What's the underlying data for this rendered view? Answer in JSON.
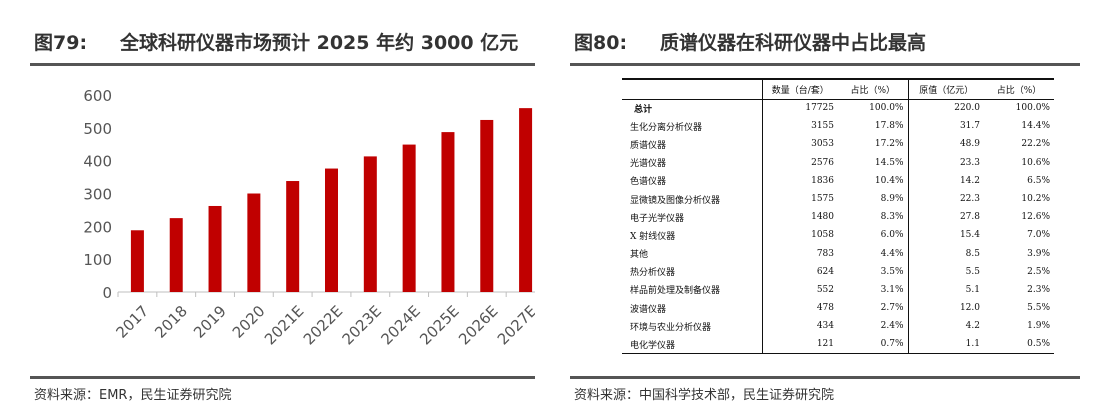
{
  "left": {
    "fig_no": "图79:",
    "title": "全球科研仪器市场预计 2025 年约 3000 亿元",
    "source": "资料来源：EMR，民生证券研究院"
  },
  "right": {
    "fig_no": "图80:",
    "title": "质谱仪器在科研仪器中占比最高",
    "source": "资料来源：中国科学技术部，民生证券研究院"
  },
  "chart_data": {
    "type": "bar",
    "categories": [
      "2017",
      "2018",
      "2019",
      "2020",
      "2021E",
      "2022E",
      "2023E",
      "2024E",
      "2025E",
      "2026E",
      "2027E"
    ],
    "values": [
      188,
      225,
      262,
      300,
      338,
      376,
      413,
      449,
      487,
      524,
      560
    ],
    "yticks": [
      0,
      100,
      200,
      300,
      400,
      500,
      600
    ],
    "ylim": [
      0,
      600
    ],
    "bar_color": "#c00000"
  },
  "table": {
    "headers": [
      "",
      "数量（台/套）",
      "占比（%）",
      "原值（亿元）",
      "占比（%）"
    ],
    "rows": [
      [
        "总计",
        "17725",
        "100.0%",
        "220.0",
        "100.0%"
      ],
      [
        "生化分离分析仪器",
        "3155",
        "17.8%",
        "31.7",
        "14.4%"
      ],
      [
        "质谱仪器",
        "3053",
        "17.2%",
        "48.9",
        "22.2%"
      ],
      [
        "光谱仪器",
        "2576",
        "14.5%",
        "23.3",
        "10.6%"
      ],
      [
        "色谱仪器",
        "1836",
        "10.4%",
        "14.2",
        "6.5%"
      ],
      [
        "显微镜及图像分析仪器",
        "1575",
        "8.9%",
        "22.3",
        "10.2%"
      ],
      [
        "电子光学仪器",
        "1480",
        "8.3%",
        "27.8",
        "12.6%"
      ],
      [
        "X 射线仪器",
        "1058",
        "6.0%",
        "15.4",
        "7.0%"
      ],
      [
        "其他",
        "783",
        "4.4%",
        "8.5",
        "3.9%"
      ],
      [
        "热分析仪器",
        "624",
        "3.5%",
        "5.5",
        "2.5%"
      ],
      [
        "样品前处理及制备仪器",
        "552",
        "3.1%",
        "5.1",
        "2.3%"
      ],
      [
        "波谱仪器",
        "478",
        "2.7%",
        "12.0",
        "5.5%"
      ],
      [
        "环境与农业分析仪器",
        "434",
        "2.4%",
        "4.2",
        "1.9%"
      ],
      [
        "电化学仪器",
        "121",
        "0.7%",
        "1.1",
        "0.5%"
      ]
    ]
  }
}
